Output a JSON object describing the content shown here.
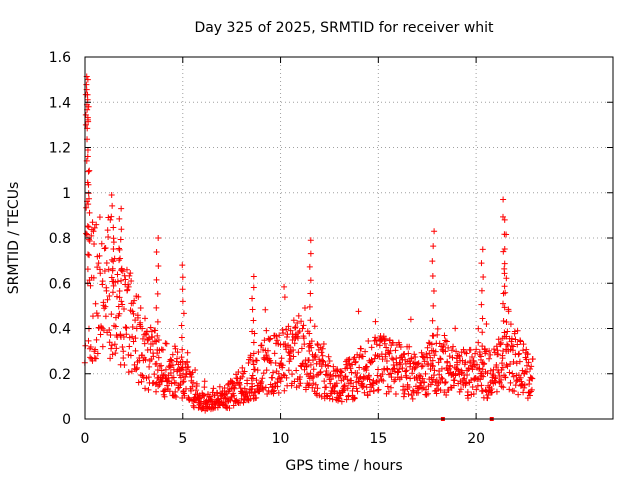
{
  "chart_data": {
    "type": "scatter",
    "title": "Day 325 of 2025, SRMTID for receiver whit",
    "xlabel": "GPS time / hours",
    "ylabel": "SRMTID / TECUs",
    "xlim": [
      0,
      27
    ],
    "ylim": [
      0,
      1.6
    ],
    "xticks": [
      0,
      5,
      10,
      15,
      20
    ],
    "xtick_labels": [
      "0",
      "5",
      "10",
      "15",
      "20"
    ],
    "yticks": [
      0,
      0.2,
      0.4,
      0.6,
      0.8,
      1.0,
      1.2,
      1.4,
      1.6
    ],
    "ytick_labels": [
      "0",
      "0.2",
      "0.4",
      "0.6",
      "0.8",
      "1",
      "1.2",
      "1.4",
      "1.6"
    ],
    "grid": true,
    "marker": "+",
    "series": [
      {
        "name": "SRMTID",
        "color": "#ff0000",
        "x_range": [
          0.0,
          22.9
        ],
        "profile": [
          [
            0.0,
            0.45
          ],
          [
            0.1,
            1.3
          ],
          [
            0.2,
            0.6
          ],
          [
            0.5,
            0.55
          ],
          [
            1.0,
            0.6
          ],
          [
            1.5,
            0.55
          ],
          [
            2.0,
            0.5
          ],
          [
            3.0,
            0.3
          ],
          [
            4.0,
            0.22
          ],
          [
            5.0,
            0.2
          ],
          [
            5.5,
            0.12
          ],
          [
            6.0,
            0.08
          ],
          [
            7.0,
            0.08
          ],
          [
            8.0,
            0.15
          ],
          [
            9.0,
            0.22
          ],
          [
            10.0,
            0.25
          ],
          [
            11.0,
            0.3
          ],
          [
            12.0,
            0.22
          ],
          [
            13.0,
            0.15
          ],
          [
            14.0,
            0.2
          ],
          [
            15.0,
            0.25
          ],
          [
            16.0,
            0.22
          ],
          [
            17.0,
            0.18
          ],
          [
            18.0,
            0.25
          ],
          [
            19.0,
            0.2
          ],
          [
            20.0,
            0.2
          ],
          [
            21.0,
            0.2
          ],
          [
            21.5,
            0.3
          ],
          [
            22.0,
            0.25
          ],
          [
            22.9,
            0.18
          ]
        ],
        "spikes": [
          [
            0.1,
            1.5
          ],
          [
            0.15,
            1.38
          ],
          [
            0.2,
            1.16
          ],
          [
            1.4,
            0.99
          ],
          [
            1.8,
            0.93
          ],
          [
            3.7,
            0.8
          ],
          [
            5.0,
            0.68
          ],
          [
            8.6,
            0.63
          ],
          [
            11.5,
            0.79
          ],
          [
            17.8,
            0.83
          ],
          [
            20.3,
            0.75
          ],
          [
            21.4,
            0.97
          ],
          [
            21.5,
            0.88
          ]
        ],
        "outliers": [
          [
            18.3,
            0.0
          ],
          [
            20.8,
            0.0
          ]
        ]
      }
    ]
  }
}
